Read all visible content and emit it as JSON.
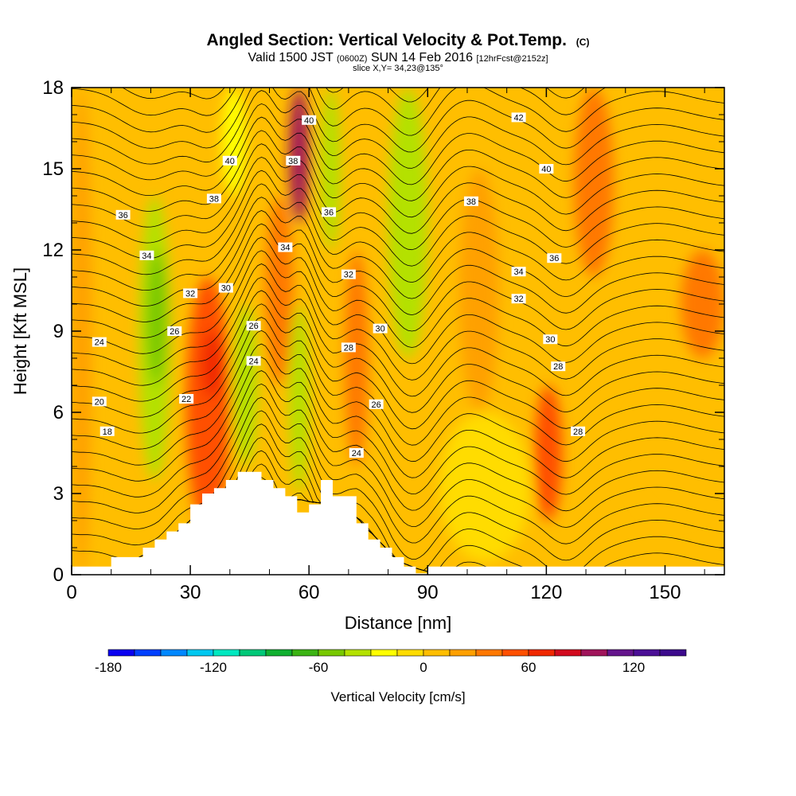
{
  "chart_data": {
    "type": "heatmap",
    "title": "Angled Section: Vertical Velocity & Pot.Temp.",
    "title_unit": "(C)",
    "subtitle": {
      "valid": "Valid 1500 JST",
      "zulu": "(0600Z)",
      "date": "SUN 14 Feb 2016",
      "fcst": "[12hrFcst@2152z]"
    },
    "slice_label": "slice X,Y= 34,23@135°",
    "xlabel": "Distance [nm]",
    "ylabel": "Height [Kft MSL]",
    "xlim": [
      0,
      165
    ],
    "ylim": [
      0,
      18
    ],
    "x_ticks": [
      "0",
      "30",
      "60",
      "90",
      "120",
      "150"
    ],
    "y_ticks": [
      "0",
      "3",
      "6",
      "9",
      "12",
      "15",
      "18"
    ],
    "grid": false,
    "colorbar": {
      "label": "Vertical Velocity [cm/s]",
      "tick_labels": [
        "-180",
        "-120",
        "-60",
        "0",
        "60",
        "120"
      ],
      "tick_values": [
        -180,
        -120,
        -60,
        0,
        60,
        120
      ],
      "range": [
        -180,
        150
      ],
      "step": 15,
      "colors": [
        "#0a00f0",
        "#0040ff",
        "#0088ff",
        "#00c8f0",
        "#00e8c0",
        "#00c878",
        "#10b030",
        "#3cb414",
        "#78c800",
        "#b4e100",
        "#ffff00",
        "#ffdc00",
        "#ffbe00",
        "#ffa000",
        "#ff7800",
        "#ff5000",
        "#f02800",
        "#d20a1e",
        "#a0145a",
        "#64148c",
        "#4b0f96",
        "#3c0a8c"
      ]
    },
    "velocity_field": {
      "background_cm_s": 10,
      "cells": [
        {
          "x": [
            0,
            5
          ],
          "z": [
            0,
            18
          ],
          "w": 15
        },
        {
          "x": [
            17,
            25
          ],
          "z": [
            3.5,
            14
          ],
          "w": -35
        },
        {
          "x": [
            19,
            24
          ],
          "z": [
            7,
            12
          ],
          "w": -50
        },
        {
          "x": [
            29,
            40
          ],
          "z": [
            1.5,
            11
          ],
          "w": 45
        },
        {
          "x": [
            33,
            38
          ],
          "z": [
            6.5,
            9
          ],
          "w": 65
        },
        {
          "x": [
            41,
            47
          ],
          "z": [
            4,
            10
          ],
          "w": -40
        },
        {
          "x": [
            38,
            44
          ],
          "z": [
            14,
            18
          ],
          "w": -25
        },
        {
          "x": [
            55,
            60
          ],
          "z": [
            13,
            18
          ],
          "w": 95
        },
        {
          "x": [
            49,
            56
          ],
          "z": [
            7,
            14
          ],
          "w": 35
        },
        {
          "x": [
            55,
            60
          ],
          "z": [
            3,
            10
          ],
          "w": -40
        },
        {
          "x": [
            63,
            68
          ],
          "z": [
            12,
            18
          ],
          "w": -45
        },
        {
          "x": [
            69,
            75
          ],
          "z": [
            4,
            12
          ],
          "w": 35
        },
        {
          "x": [
            80,
            90
          ],
          "z": [
            8,
            18
          ],
          "w": -45
        },
        {
          "x": [
            98,
            108
          ],
          "z": [
            6,
            15
          ],
          "w": 20
        },
        {
          "x": [
            117,
            124
          ],
          "z": [
            2,
            7
          ],
          "w": 55
        },
        {
          "x": [
            127,
            137
          ],
          "z": [
            11,
            18
          ],
          "w": 30
        },
        {
          "x": [
            154,
            165
          ],
          "z": [
            8,
            12
          ],
          "w": 35
        },
        {
          "x": [
            93,
            116
          ],
          "z": [
            0.5,
            6
          ],
          "w": -5
        },
        {
          "x": [
            140,
            165
          ],
          "z": [
            2,
            7
          ],
          "w": 0
        }
      ]
    },
    "pot_temp_contours_C": {
      "interval": 1,
      "range": [
        6,
        44
      ],
      "labels": [
        {
          "x": 9,
          "z": 5.3,
          "t": "18"
        },
        {
          "x": 7,
          "z": 6.4,
          "t": "20"
        },
        {
          "x": 29,
          "z": 6.5,
          "t": "22"
        },
        {
          "x": 7,
          "z": 8.6,
          "t": "24"
        },
        {
          "x": 26,
          "z": 9.0,
          "t": "26"
        },
        {
          "x": 30,
          "z": 10.4,
          "t": "32"
        },
        {
          "x": 19,
          "z": 11.8,
          "t": "34"
        },
        {
          "x": 13,
          "z": 13.3,
          "t": "36"
        },
        {
          "x": 36,
          "z": 13.9,
          "t": "38"
        },
        {
          "x": 40,
          "z": 15.3,
          "t": "40"
        },
        {
          "x": 39,
          "z": 10.6,
          "t": "30"
        },
        {
          "x": 46,
          "z": 9.2,
          "t": "26"
        },
        {
          "x": 46,
          "z": 7.9,
          "t": "24"
        },
        {
          "x": 54,
          "z": 12.1,
          "t": "34"
        },
        {
          "x": 56,
          "z": 15.3,
          "t": "38"
        },
        {
          "x": 60,
          "z": 16.8,
          "t": "40"
        },
        {
          "x": 65,
          "z": 13.4,
          "t": "36"
        },
        {
          "x": 70,
          "z": 11.1,
          "t": "32"
        },
        {
          "x": 70,
          "z": 8.4,
          "t": "28"
        },
        {
          "x": 78,
          "z": 9.1,
          "t": "30"
        },
        {
          "x": 77,
          "z": 6.3,
          "t": "26"
        },
        {
          "x": 72,
          "z": 4.5,
          "t": "24"
        },
        {
          "x": 101,
          "z": 13.8,
          "t": "38"
        },
        {
          "x": 113,
          "z": 16.9,
          "t": "42"
        },
        {
          "x": 120,
          "z": 15.0,
          "t": "40"
        },
        {
          "x": 122,
          "z": 11.7,
          "t": "36"
        },
        {
          "x": 113,
          "z": 11.2,
          "t": "34"
        },
        {
          "x": 113,
          "z": 10.2,
          "t": "32"
        },
        {
          "x": 121,
          "z": 8.7,
          "t": "30"
        },
        {
          "x": 123,
          "z": 7.7,
          "t": "28"
        },
        {
          "x": 128,
          "z": 5.3,
          "t": "28"
        }
      ]
    },
    "terrain_kft": {
      "x": [
        0,
        10,
        10,
        18,
        18,
        21,
        21,
        24,
        24,
        27,
        27,
        30,
        30,
        33,
        33,
        36,
        36,
        39,
        39,
        42,
        42,
        48,
        48,
        51,
        51,
        54,
        54,
        57,
        57,
        60,
        60,
        63,
        63,
        66,
        66,
        72,
        72,
        75,
        75,
        78,
        78,
        81,
        81,
        84,
        84,
        87,
        87,
        90,
        90,
        165
      ],
      "z": [
        0.3,
        0.3,
        0.65,
        0.65,
        1.0,
        1.0,
        1.3,
        1.3,
        1.6,
        1.6,
        1.9,
        1.9,
        2.6,
        2.6,
        3.0,
        3.0,
        3.2,
        3.2,
        3.5,
        3.5,
        3.8,
        3.8,
        3.5,
        3.5,
        3.2,
        3.2,
        2.9,
        2.9,
        2.3,
        2.3,
        2.6,
        2.6,
        3.5,
        3.5,
        2.9,
        2.9,
        1.9,
        1.9,
        1.3,
        1.3,
        1.0,
        1.0,
        0.65,
        0.65,
        0.3,
        0.3,
        0.05,
        0.05,
        0.3,
        0.3
      ]
    }
  }
}
